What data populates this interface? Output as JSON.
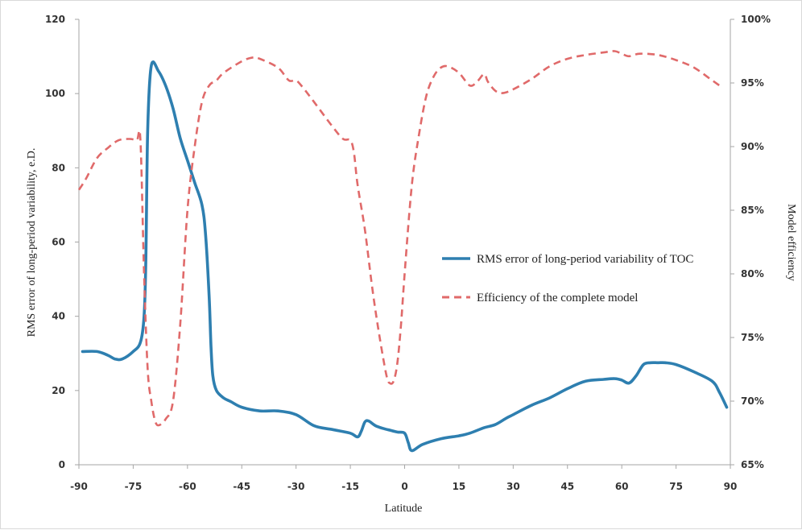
{
  "chart_data": {
    "type": "line",
    "xlabel": "Latitude",
    "ylabel": "RMS error of long-period variability, e.D.",
    "y2label": "Model efficiency",
    "xlim": [
      -90,
      90
    ],
    "ylim": [
      0,
      120
    ],
    "y2lim": [
      0.65,
      1.0
    ],
    "xticks": [
      "-90",
      "-75",
      "-60",
      "-45",
      "-30",
      "-15",
      "0",
      "15",
      "30",
      "45",
      "60",
      "75",
      "90"
    ],
    "yticks": [
      "0",
      "20",
      "40",
      "60",
      "80",
      "100",
      "120"
    ],
    "y2ticks": [
      "65%",
      "70%",
      "75%",
      "80%",
      "85%",
      "90%",
      "95%",
      "100%"
    ],
    "grid": false,
    "legend_position": "center-right",
    "series": [
      {
        "name": "RMS error of long-period variability of TOC",
        "axis": "left",
        "style": "solid",
        "color": "#2e7fb0",
        "x": [
          -89,
          -85,
          -82,
          -80,
          -78,
          -75,
          -73,
          -72,
          -71.5,
          -71,
          -70,
          -68,
          -66,
          -64,
          -62,
          -60,
          -58,
          -56,
          -55,
          -54,
          -53.5,
          -53,
          -52,
          -50,
          -48,
          -45,
          -40,
          -35,
          -30,
          -25,
          -20,
          -15,
          -13,
          -12,
          -11,
          -10,
          -8,
          -6,
          -4,
          -2,
          0,
          1,
          2,
          5,
          10,
          15,
          18,
          22,
          25,
          28,
          30,
          35,
          40,
          45,
          50,
          55,
          58,
          60,
          62,
          64,
          66,
          68,
          70,
          72,
          75,
          80,
          85,
          87,
          89
        ],
        "y": [
          30.5,
          30.5,
          29.5,
          28.5,
          28.5,
          30.5,
          33,
          40,
          55,
          90,
          107.5,
          106,
          102,
          96,
          88,
          82,
          76,
          70,
          62,
          45,
          32,
          24,
          20,
          18,
          17,
          15.5,
          14.5,
          14.5,
          13.5,
          10.5,
          9.5,
          8.5,
          7.5,
          9,
          11.5,
          11.8,
          10.5,
          9.8,
          9.3,
          8.8,
          8.5,
          6,
          3.8,
          5.5,
          7,
          7.8,
          8.5,
          10,
          10.8,
          12.5,
          13.5,
          16,
          18,
          20.5,
          22.5,
          23,
          23.2,
          22.8,
          22,
          24,
          27,
          27.5,
          27.5,
          27.5,
          27,
          25,
          22.5,
          19.5,
          15.5
        ]
      },
      {
        "name": "Efficiency of the complete model",
        "axis": "right",
        "style": "dashed",
        "color": "#e06a6a",
        "x": [
          -90,
          -88,
          -85,
          -82,
          -79,
          -76,
          -74,
          -73,
          -72,
          -71,
          -70,
          -69,
          -68,
          -66,
          -64,
          -62,
          -60,
          -58,
          -56,
          -54,
          -52,
          -50,
          -45,
          -42,
          -40,
          -35,
          -32,
          -30,
          -28,
          -25,
          -20,
          -17,
          -15,
          -14,
          -13,
          -11,
          -9,
          -7,
          -5,
          -4,
          -3,
          -2,
          -1,
          0,
          2,
          4,
          6,
          8,
          10,
          12,
          15,
          18,
          20,
          22,
          23,
          25,
          27,
          30,
          35,
          40,
          45,
          50,
          55,
          58,
          60,
          62,
          65,
          70,
          75,
          80,
          85,
          88
        ],
        "y": [
          0.866,
          0.875,
          0.891,
          0.899,
          0.905,
          0.906,
          0.905,
          0.905,
          0.8,
          0.725,
          0.7,
          0.685,
          0.681,
          0.686,
          0.7,
          0.76,
          0.85,
          0.9,
          0.935,
          0.948,
          0.952,
          0.958,
          0.967,
          0.97,
          0.969,
          0.962,
          0.952,
          0.952,
          0.946,
          0.935,
          0.916,
          0.906,
          0.905,
          0.895,
          0.87,
          0.835,
          0.79,
          0.752,
          0.72,
          0.714,
          0.716,
          0.73,
          0.76,
          0.8,
          0.87,
          0.91,
          0.94,
          0.955,
          0.962,
          0.963,
          0.958,
          0.948,
          0.951,
          0.957,
          0.951,
          0.944,
          0.942,
          0.945,
          0.953,
          0.963,
          0.969,
          0.972,
          0.974,
          0.975,
          0.973,
          0.971,
          0.973,
          0.972,
          0.968,
          0.962,
          0.952,
          0.946
        ]
      }
    ]
  }
}
